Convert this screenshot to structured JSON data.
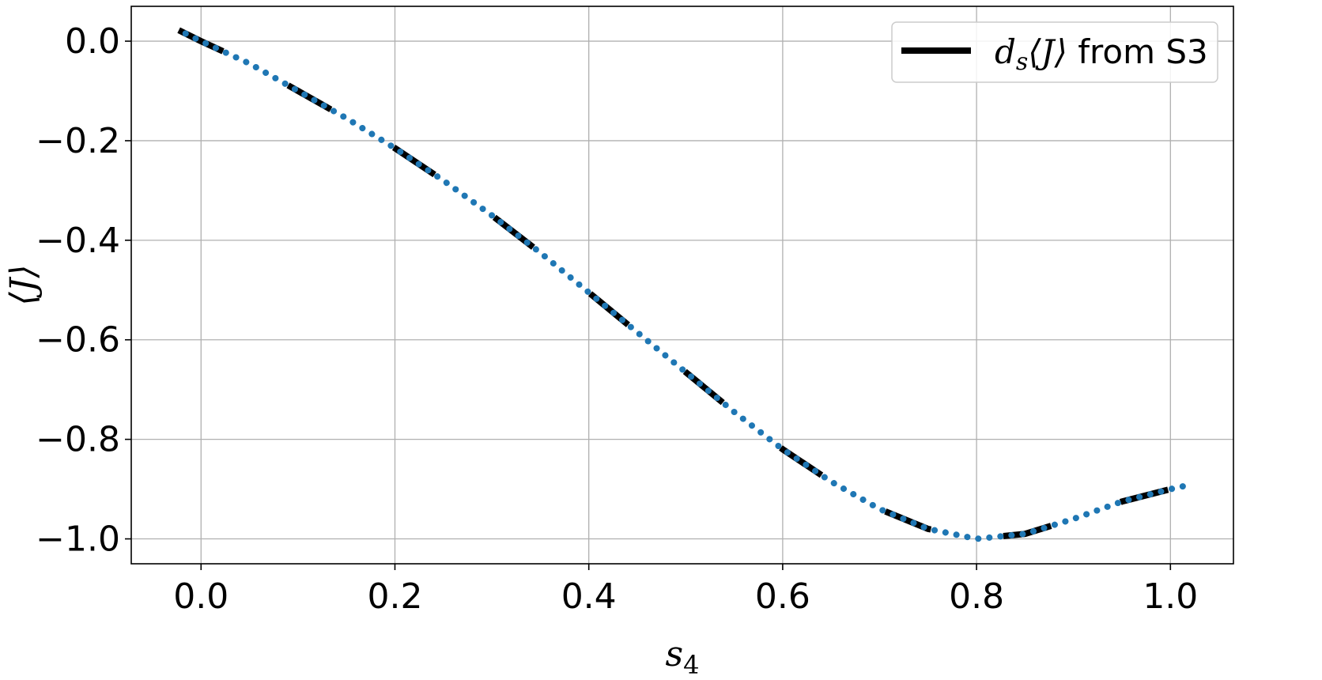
{
  "chart_data": {
    "type": "line",
    "title": "",
    "xlabel": "s",
    "xlabel_sub": "4",
    "ylabel": "⟨J⟩",
    "xlim": [
      -0.072,
      1.065
    ],
    "ylim": [
      -1.05,
      0.07
    ],
    "xticks": [
      0.0,
      0.2,
      0.4,
      0.6,
      0.8,
      1.0
    ],
    "xtick_labels": [
      "0.0",
      "0.2",
      "0.4",
      "0.6",
      "0.8",
      "1.0"
    ],
    "yticks": [
      0.0,
      -0.2,
      -0.4,
      -0.6,
      -0.8,
      -1.0
    ],
    "ytick_labels": [
      "0.0",
      "−0.2",
      "−0.4",
      "−0.6",
      "−0.8",
      "−1.0"
    ],
    "grid": true,
    "legend_position": "top-right",
    "colors": {
      "dashed": "#000000",
      "dotted": "#1f77b4",
      "grid": "#b0b0b0"
    },
    "legend": [
      {
        "label_math": "d",
        "label_sub": "s",
        "label_rest": "⟨J⟩",
        "label_suffix": " from S3"
      }
    ],
    "series": [
      {
        "name": "d_s⟨J⟩ from S3",
        "style": "dashed",
        "x": [
          -0.023,
          0.0,
          0.05,
          0.1,
          0.15,
          0.2,
          0.25,
          0.3,
          0.35,
          0.4,
          0.45,
          0.5,
          0.55,
          0.6,
          0.65,
          0.7,
          0.75,
          0.8,
          0.85,
          0.9,
          0.95,
          1.0,
          1.023
        ],
        "y": [
          0.022,
          0.0,
          -0.045,
          -0.1,
          -0.155,
          -0.215,
          -0.28,
          -0.35,
          -0.425,
          -0.505,
          -0.585,
          -0.665,
          -0.745,
          -0.82,
          -0.885,
          -0.94,
          -0.98,
          -1.0,
          -0.99,
          -0.96,
          -0.925,
          -0.9,
          -0.89
        ]
      },
      {
        "name": "",
        "style": "dotted",
        "x": [
          -0.023,
          0.0,
          0.05,
          0.1,
          0.15,
          0.2,
          0.25,
          0.3,
          0.35,
          0.4,
          0.45,
          0.5,
          0.55,
          0.6,
          0.65,
          0.7,
          0.75,
          0.8,
          0.85,
          0.9,
          0.95,
          1.0,
          1.023
        ],
        "y": [
          0.022,
          0.0,
          -0.045,
          -0.1,
          -0.155,
          -0.215,
          -0.28,
          -0.35,
          -0.425,
          -0.505,
          -0.585,
          -0.665,
          -0.745,
          -0.82,
          -0.885,
          -0.94,
          -0.98,
          -1.0,
          -0.99,
          -0.96,
          -0.925,
          -0.9,
          -0.89
        ]
      }
    ]
  }
}
